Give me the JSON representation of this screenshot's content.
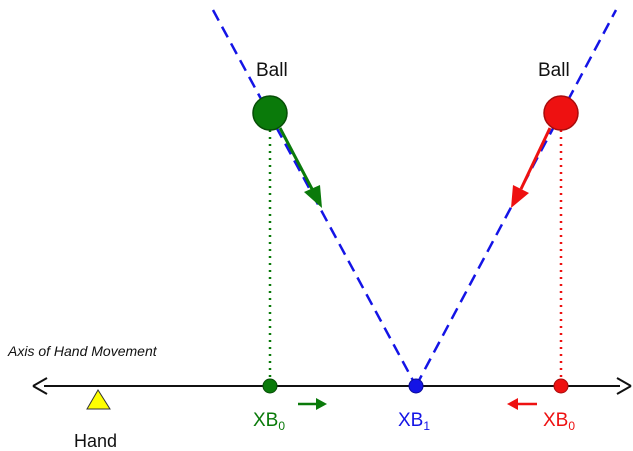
{
  "labels": {
    "ball_left": "Ball",
    "ball_right": "Ball",
    "axis": "Axis of Hand Movement",
    "hand": "Hand",
    "xb0_left": {
      "base": "XB",
      "sub": "0"
    },
    "xb1": {
      "base": "XB",
      "sub": "1"
    },
    "xb0_right": {
      "base": "XB",
      "sub": "0"
    }
  },
  "colors": {
    "green": "#0a7a0a",
    "red": "#ee1111",
    "blue": "#1414e6",
    "hand": "#ffff00",
    "axis": "#111111"
  }
}
